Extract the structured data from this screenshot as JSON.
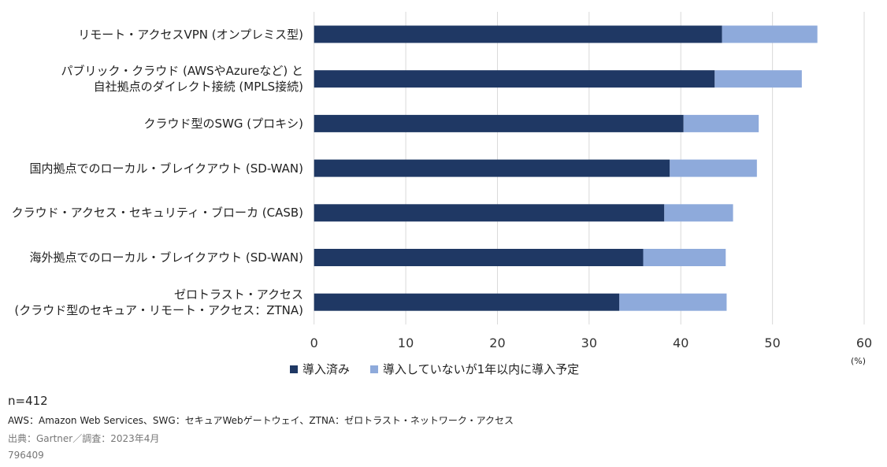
{
  "chart_data": {
    "type": "bar",
    "orientation": "horizontal",
    "stacked": true,
    "categories": [
      [
        "リモート・アクセスVPN (オンプレミス型)"
      ],
      [
        "パブリック・クラウド (AWSやAzureなど) と",
        "自社拠点のダイレクト接続 (MPLS接続)"
      ],
      [
        "クラウド型のSWG (プロキシ)"
      ],
      [
        "国内拠点でのローカル・ブレイクアウト (SD-WAN)"
      ],
      [
        "クラウド・アクセス・セキュリティ・ブローカ (CASB)"
      ],
      [
        "海外拠点でのローカル・ブレイクアウト (SD-WAN)"
      ],
      [
        "ゼロトラスト・アクセス",
        "(クラウド型のセキュア・リモート・アクセス：ZTNA)"
      ]
    ],
    "series": [
      {
        "name": "導入済み",
        "color": "#1f3864",
        "values": [
          44.5,
          43.7,
          40.3,
          38.8,
          38.2,
          35.9,
          33.3
        ]
      },
      {
        "name": "導入していないが1年以内に導入予定",
        "color": "#8eaadb",
        "values": [
          10.4,
          9.5,
          8.2,
          9.5,
          7.5,
          9.0,
          11.7
        ]
      }
    ],
    "xlim": [
      0,
      60
    ],
    "xticks": [
      "0",
      "10",
      "20",
      "30",
      "40",
      "50",
      "60"
    ],
    "unit_label": "(%)",
    "grid": true,
    "legend_position": "bottom"
  },
  "footer": {
    "n": "n=412",
    "note": "AWS：Amazon Web Services、SWG：セキュアWebゲートウェイ、ZTNA：ゼロトラスト・ネットワーク・アクセス",
    "source": "出典：Gartner／調査：2023年4月",
    "id": "796409"
  }
}
